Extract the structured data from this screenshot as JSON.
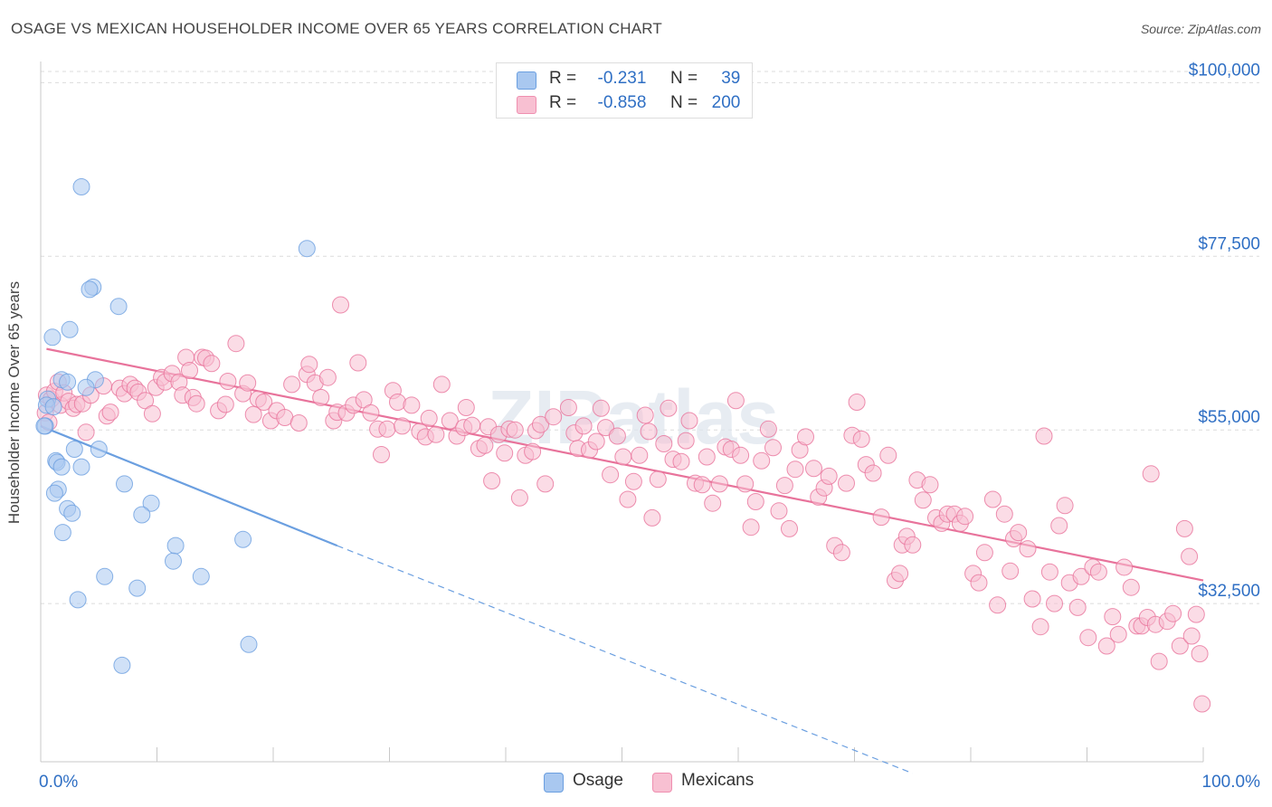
{
  "title": "OSAGE VS MEXICAN HOUSEHOLDER INCOME OVER 65 YEARS CORRELATION CHART",
  "source": "Source: ZipAtlas.com",
  "watermark": "ZIPatlas",
  "legend": {
    "rows": [
      {
        "r_label": "R =",
        "r_value": "-0.231",
        "n_label": "N =",
        "n_value": "39",
        "color": "#a9c8f0",
        "border": "#6b9fe0"
      },
      {
        "r_label": "R =",
        "r_value": "-0.858",
        "n_label": "N =",
        "n_value": "200",
        "color": "#f8c0d2",
        "border": "#ef8fb0"
      }
    ]
  },
  "bottom_legend": [
    {
      "label": "Osage",
      "color": "#a9c8f0",
      "border": "#6b9fe0"
    },
    {
      "label": "Mexicans",
      "color": "#f8c0d2",
      "border": "#ef8fb0"
    }
  ],
  "chart_data": {
    "type": "scatter",
    "xlabel": "",
    "ylabel": "Householder Income Over 65 years",
    "x_tick_labels": [
      "0.0%",
      "100.0%"
    ],
    "y_tick_labels": [
      "$100,000",
      "$77,500",
      "$55,000",
      "$32,500"
    ],
    "y_ticks": [
      100000,
      77500,
      55000,
      32500
    ],
    "xlim": [
      0,
      100
    ],
    "ylim": [
      12000,
      102500
    ],
    "grid": true,
    "series": [
      {
        "name": "Osage",
        "color": "#6b9fe0",
        "fill": "#a9c8f0",
        "trend": {
          "x0": 0,
          "y0": 55500,
          "x1": 25.5,
          "y1": 40000,
          "dash_to_x": 75,
          "dash_to_y": 10500
        },
        "points": [
          [
            3.5,
            86500
          ],
          [
            22.9,
            78500
          ],
          [
            4.5,
            73500
          ],
          [
            4.2,
            73200
          ],
          [
            6.7,
            71000
          ],
          [
            1.0,
            67000
          ],
          [
            2.5,
            68000
          ],
          [
            1.8,
            61500
          ],
          [
            4.7,
            61500
          ],
          [
            2.3,
            61200
          ],
          [
            3.9,
            60500
          ],
          [
            0.6,
            59000
          ],
          [
            0.5,
            58200
          ],
          [
            1.1,
            58000
          ],
          [
            0.4,
            55500
          ],
          [
            2.9,
            52500
          ],
          [
            5.0,
            52500
          ],
          [
            1.3,
            51000
          ],
          [
            1.4,
            50800
          ],
          [
            1.8,
            50200
          ],
          [
            3.5,
            50200
          ],
          [
            7.2,
            48000
          ],
          [
            1.5,
            47300
          ],
          [
            1.2,
            46800
          ],
          [
            9.5,
            45500
          ],
          [
            2.3,
            44800
          ],
          [
            2.7,
            44200
          ],
          [
            8.7,
            44000
          ],
          [
            1.9,
            41700
          ],
          [
            17.4,
            40800
          ],
          [
            11.6,
            40000
          ],
          [
            11.4,
            38000
          ],
          [
            5.5,
            36000
          ],
          [
            13.8,
            36000
          ],
          [
            8.3,
            34500
          ],
          [
            3.2,
            33000
          ],
          [
            17.9,
            27200
          ],
          [
            7.0,
            24500
          ],
          [
            0.3,
            55500
          ]
        ]
      },
      {
        "name": "Mexicans",
        "color": "#e8739b",
        "fill": "#f8c0d2",
        "trend": {
          "x0": 0.5,
          "y0": 65500,
          "x1": 100,
          "y1": 35500
        },
        "points": [
          [
            0.5,
            59500
          ],
          [
            0.4,
            57200
          ],
          [
            0.7,
            56000
          ],
          [
            0.9,
            59000
          ],
          [
            1.2,
            60000
          ],
          [
            1.5,
            61200
          ],
          [
            1.7,
            58200
          ],
          [
            2.0,
            59800
          ],
          [
            2.4,
            58700
          ],
          [
            2.8,
            57800
          ],
          [
            3.1,
            58300
          ],
          [
            3.6,
            58400
          ],
          [
            3.9,
            54700
          ],
          [
            4.3,
            59500
          ],
          [
            5.4,
            60700
          ],
          [
            5.7,
            56800
          ],
          [
            6.0,
            57300
          ],
          [
            6.8,
            60400
          ],
          [
            7.2,
            59700
          ],
          [
            7.7,
            60900
          ],
          [
            8.1,
            60400
          ],
          [
            8.4,
            59900
          ],
          [
            9.0,
            58800
          ],
          [
            9.6,
            57100
          ],
          [
            9.9,
            60500
          ],
          [
            10.4,
            61800
          ],
          [
            10.7,
            61200
          ],
          [
            11.3,
            62300
          ],
          [
            11.9,
            61200
          ],
          [
            12.2,
            59500
          ],
          [
            12.5,
            64400
          ],
          [
            12.8,
            62700
          ],
          [
            13.1,
            59200
          ],
          [
            13.4,
            58400
          ],
          [
            13.9,
            64400
          ],
          [
            14.2,
            64300
          ],
          [
            14.7,
            63600
          ],
          [
            15.3,
            57500
          ],
          [
            15.9,
            58300
          ],
          [
            16.1,
            61300
          ],
          [
            16.8,
            66200
          ],
          [
            17.4,
            59700
          ],
          [
            17.8,
            61100
          ],
          [
            18.3,
            57000
          ],
          [
            18.7,
            59000
          ],
          [
            19.2,
            58600
          ],
          [
            19.8,
            56200
          ],
          [
            20.3,
            57500
          ],
          [
            21.0,
            56600
          ],
          [
            21.6,
            60900
          ],
          [
            22.2,
            55900
          ],
          [
            22.9,
            62200
          ],
          [
            23.1,
            63500
          ],
          [
            23.6,
            61100
          ],
          [
            24.1,
            59200
          ],
          [
            24.7,
            61800
          ],
          [
            25.2,
            56200
          ],
          [
            25.5,
            57300
          ],
          [
            25.8,
            71200
          ],
          [
            26.3,
            57200
          ],
          [
            26.9,
            58200
          ],
          [
            27.3,
            63700
          ],
          [
            27.8,
            58900
          ],
          [
            28.4,
            57200
          ],
          [
            29.0,
            55100
          ],
          [
            29.3,
            51800
          ],
          [
            29.8,
            55100
          ],
          [
            30.3,
            60100
          ],
          [
            30.7,
            58600
          ],
          [
            31.1,
            55500
          ],
          [
            31.9,
            58200
          ],
          [
            32.6,
            54800
          ],
          [
            33.1,
            54100
          ],
          [
            33.4,
            56500
          ],
          [
            34.0,
            54400
          ],
          [
            34.5,
            60900
          ],
          [
            35.2,
            56200
          ],
          [
            35.8,
            54200
          ],
          [
            36.4,
            55300
          ],
          [
            36.6,
            57900
          ],
          [
            37.1,
            55600
          ],
          [
            37.7,
            52600
          ],
          [
            38.2,
            53000
          ],
          [
            38.5,
            55400
          ],
          [
            38.8,
            48400
          ],
          [
            39.4,
            54400
          ],
          [
            39.9,
            52000
          ],
          [
            40.3,
            55100
          ],
          [
            40.8,
            55000
          ],
          [
            41.2,
            46200
          ],
          [
            41.7,
            51700
          ],
          [
            42.3,
            52200
          ],
          [
            42.6,
            54900
          ],
          [
            43.0,
            55700
          ],
          [
            43.4,
            48000
          ],
          [
            44.1,
            56700
          ],
          [
            45.4,
            57900
          ],
          [
            45.9,
            54600
          ],
          [
            46.2,
            52600
          ],
          [
            46.7,
            55500
          ],
          [
            47.2,
            52400
          ],
          [
            47.8,
            53500
          ],
          [
            48.2,
            57800
          ],
          [
            48.6,
            55300
          ],
          [
            49.0,
            49200
          ],
          [
            49.6,
            54200
          ],
          [
            50.1,
            51500
          ],
          [
            50.5,
            46000
          ],
          [
            51.0,
            48300
          ],
          [
            51.5,
            51700
          ],
          [
            52.0,
            56900
          ],
          [
            52.3,
            54800
          ],
          [
            52.6,
            43600
          ],
          [
            53.1,
            48600
          ],
          [
            53.6,
            53200
          ],
          [
            54.0,
            57800
          ],
          [
            54.4,
            51200
          ],
          [
            55.1,
            50900
          ],
          [
            55.5,
            53600
          ],
          [
            55.8,
            56200
          ],
          [
            56.3,
            48100
          ],
          [
            56.9,
            47900
          ],
          [
            57.3,
            51500
          ],
          [
            57.8,
            45500
          ],
          [
            58.4,
            48000
          ],
          [
            58.9,
            52800
          ],
          [
            59.4,
            52500
          ],
          [
            59.8,
            58800
          ],
          [
            60.2,
            51700
          ],
          [
            60.6,
            48000
          ],
          [
            61.1,
            42400
          ],
          [
            61.5,
            45700
          ],
          [
            62.0,
            51000
          ],
          [
            62.6,
            55100
          ],
          [
            63.0,
            52700
          ],
          [
            63.5,
            44500
          ],
          [
            64.0,
            47800
          ],
          [
            64.4,
            42200
          ],
          [
            64.9,
            49900
          ],
          [
            65.3,
            52400
          ],
          [
            65.8,
            54100
          ],
          [
            66.5,
            50000
          ],
          [
            66.9,
            46300
          ],
          [
            67.4,
            47500
          ],
          [
            67.8,
            49000
          ],
          [
            68.3,
            40000
          ],
          [
            68.9,
            39100
          ],
          [
            69.3,
            48100
          ],
          [
            69.8,
            54300
          ],
          [
            70.2,
            58600
          ],
          [
            70.6,
            53800
          ],
          [
            71.0,
            50500
          ],
          [
            71.6,
            49400
          ],
          [
            72.3,
            43700
          ],
          [
            72.9,
            51700
          ],
          [
            73.5,
            35500
          ],
          [
            73.9,
            36400
          ],
          [
            74.1,
            40100
          ],
          [
            74.5,
            41200
          ],
          [
            75.0,
            40100
          ],
          [
            75.4,
            48500
          ],
          [
            75.9,
            45900
          ],
          [
            76.5,
            47900
          ],
          [
            77.0,
            43600
          ],
          [
            77.5,
            42900
          ],
          [
            78.0,
            44100
          ],
          [
            78.6,
            44100
          ],
          [
            79.1,
            42900
          ],
          [
            79.5,
            43800
          ],
          [
            80.2,
            36400
          ],
          [
            80.7,
            35200
          ],
          [
            81.2,
            39100
          ],
          [
            81.9,
            46000
          ],
          [
            82.3,
            32300
          ],
          [
            82.9,
            44100
          ],
          [
            83.4,
            36700
          ],
          [
            83.7,
            40900
          ],
          [
            84.1,
            41700
          ],
          [
            84.9,
            39600
          ],
          [
            85.3,
            33100
          ],
          [
            86.0,
            29500
          ],
          [
            86.3,
            54200
          ],
          [
            86.8,
            36600
          ],
          [
            87.2,
            32500
          ],
          [
            87.6,
            42600
          ],
          [
            88.1,
            45200
          ],
          [
            88.5,
            35200
          ],
          [
            89.2,
            32000
          ],
          [
            89.5,
            36000
          ],
          [
            90.1,
            28100
          ],
          [
            90.5,
            37200
          ],
          [
            91.0,
            36600
          ],
          [
            91.7,
            27000
          ],
          [
            92.2,
            30800
          ],
          [
            92.7,
            28500
          ],
          [
            93.2,
            37200
          ],
          [
            93.8,
            34600
          ],
          [
            94.3,
            29600
          ],
          [
            94.7,
            29600
          ],
          [
            95.2,
            30700
          ],
          [
            95.9,
            29800
          ],
          [
            96.2,
            25000
          ],
          [
            96.9,
            30200
          ],
          [
            97.4,
            31200
          ],
          [
            98.0,
            27000
          ],
          [
            98.4,
            42200
          ],
          [
            99.0,
            28300
          ],
          [
            99.4,
            31100
          ],
          [
            99.7,
            26000
          ],
          [
            99.9,
            19500
          ],
          [
            98.8,
            38600
          ],
          [
            95.5,
            49300
          ]
        ]
      }
    ]
  }
}
